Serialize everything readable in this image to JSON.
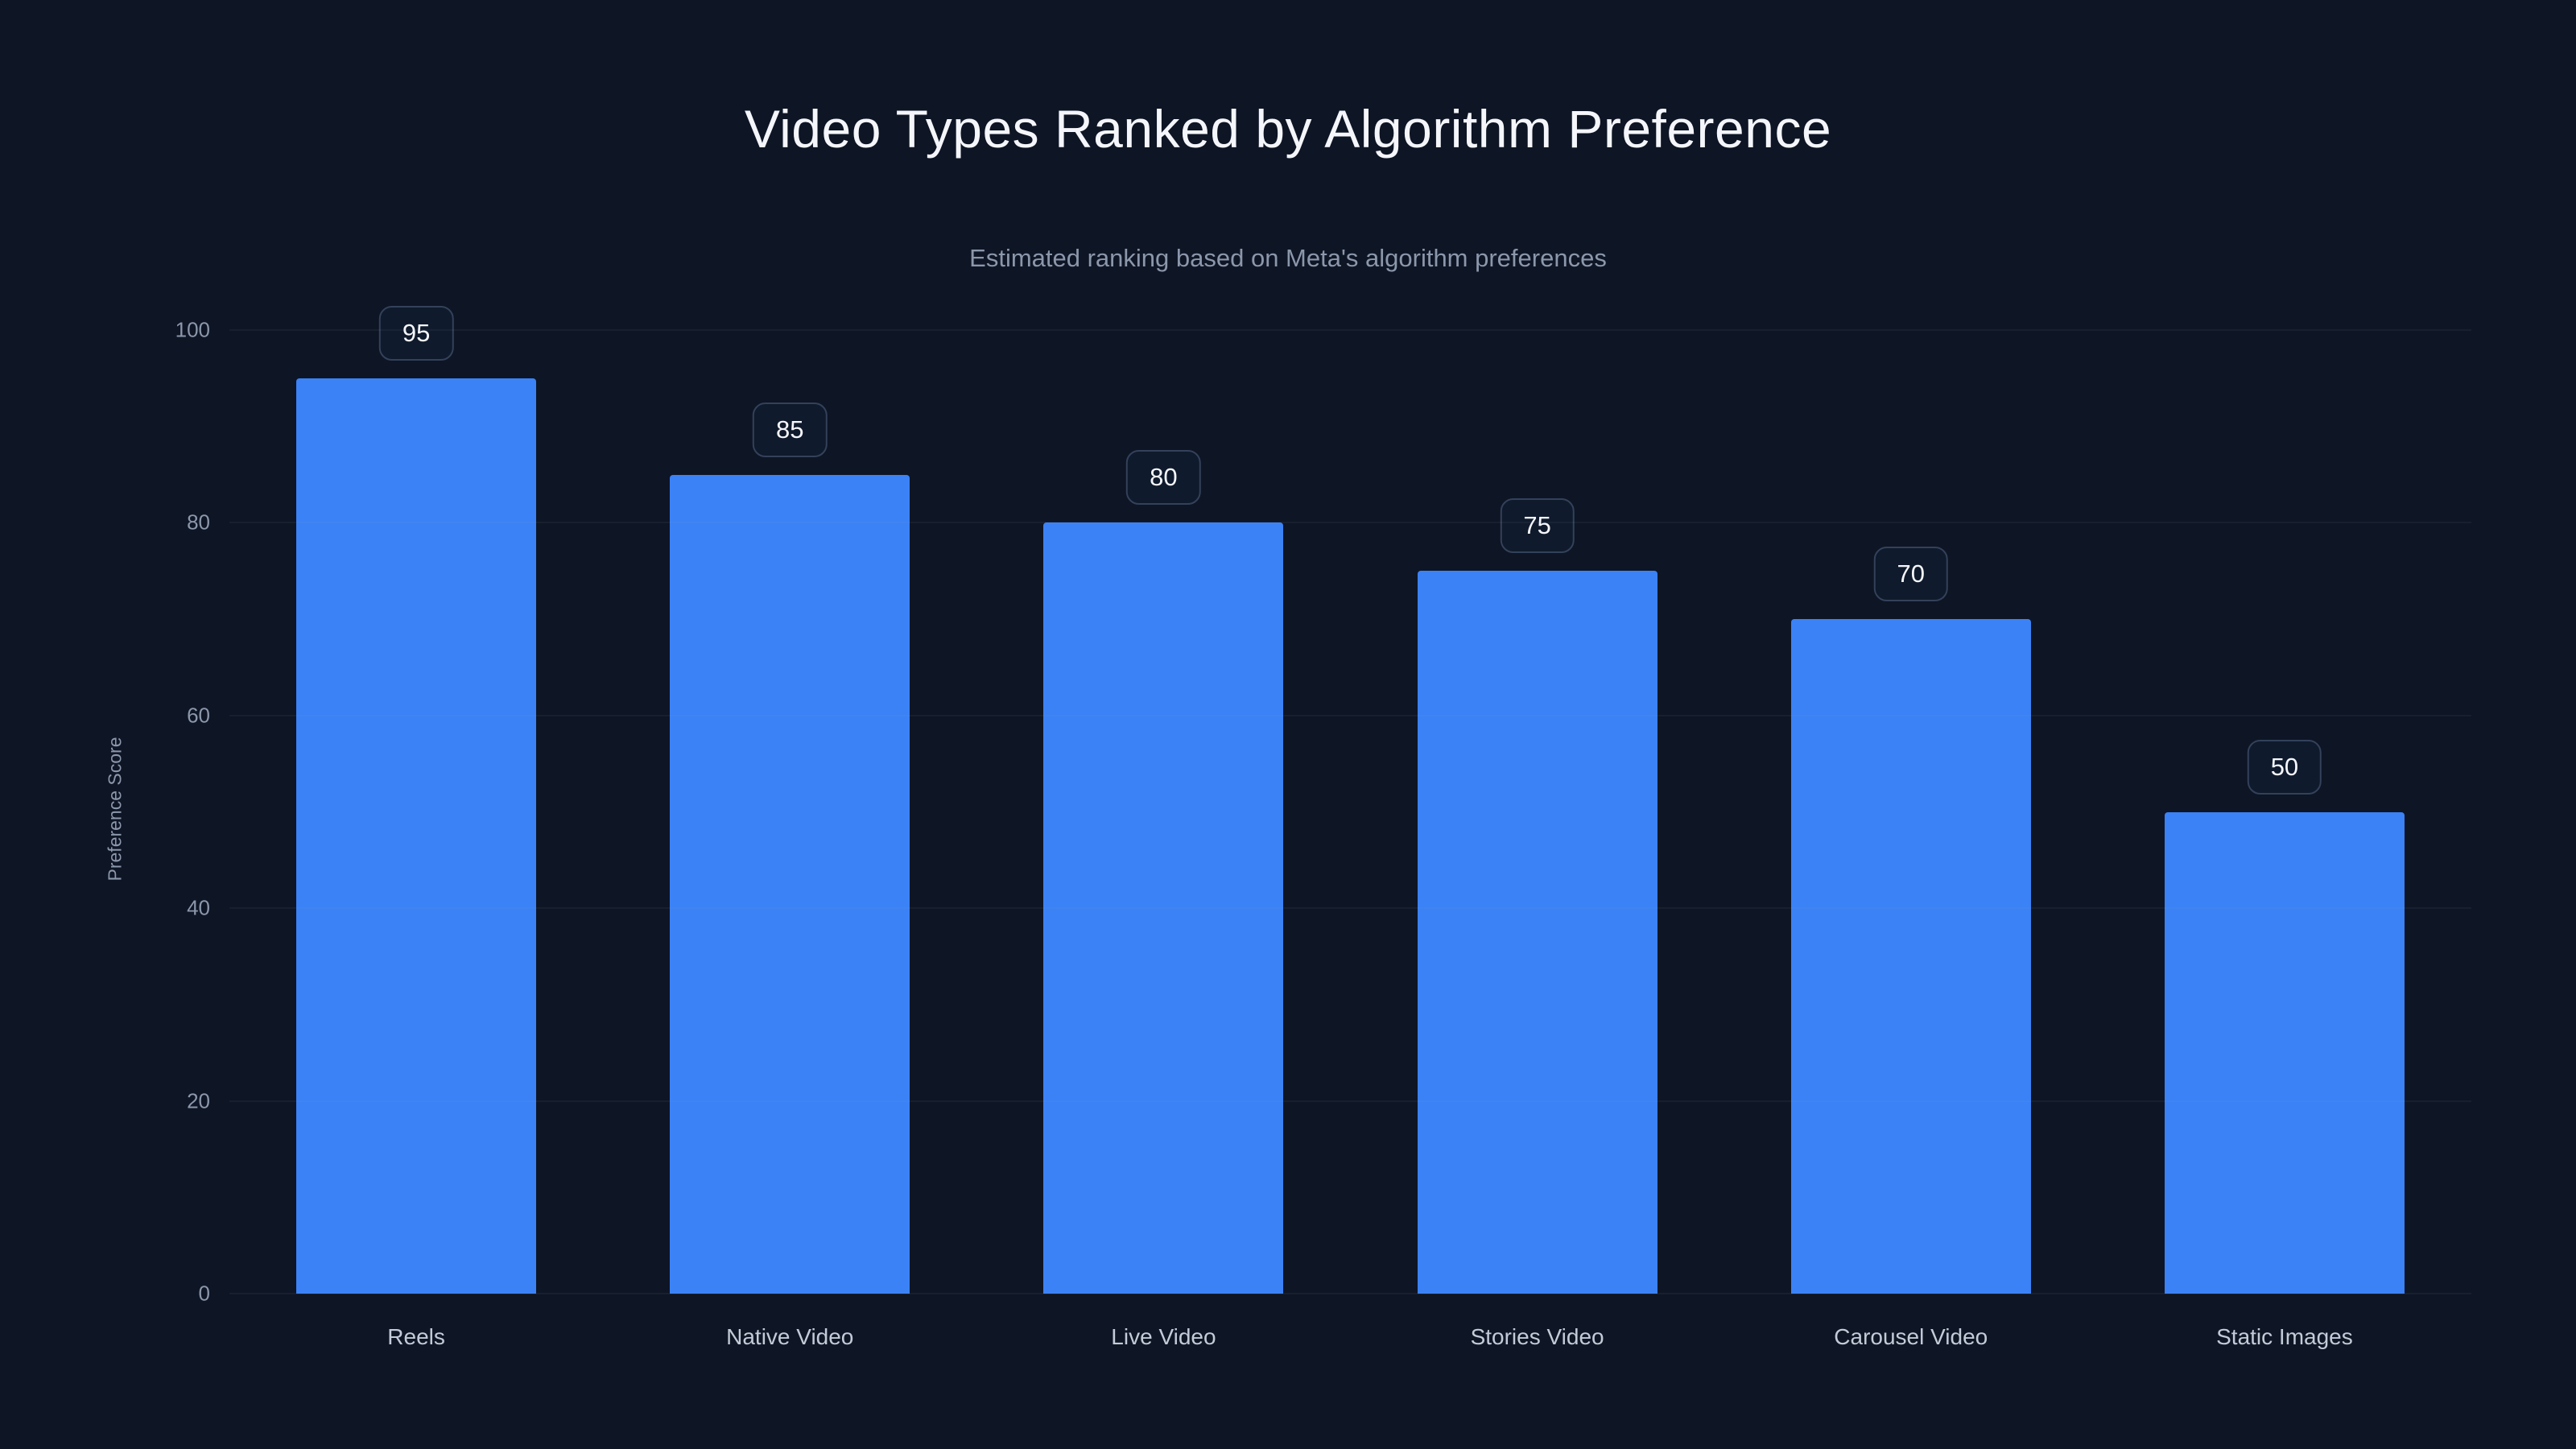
{
  "page": {
    "background_color": "#0e1524",
    "accent_color": "#3b82f6"
  },
  "chart_data": {
    "type": "bar",
    "title": "Video Types Ranked by Algorithm Preference",
    "subtitle": "Estimated ranking based on Meta's algorithm preferences",
    "xlabel": "",
    "ylabel": "Preference Score",
    "categories": [
      "Reels",
      "Native Video",
      "Live Video",
      "Stories Video",
      "Carousel Video",
      "Static Images"
    ],
    "values": [
      95,
      85,
      80,
      75,
      70,
      50
    ],
    "value_labels": [
      "95",
      "85",
      "80",
      "75",
      "70",
      "50"
    ],
    "ylim": [
      0,
      100
    ],
    "yticks": [
      0,
      20,
      40,
      60,
      80,
      100
    ],
    "grid": true,
    "legend": "none",
    "bar_color": "#3b82f6"
  }
}
